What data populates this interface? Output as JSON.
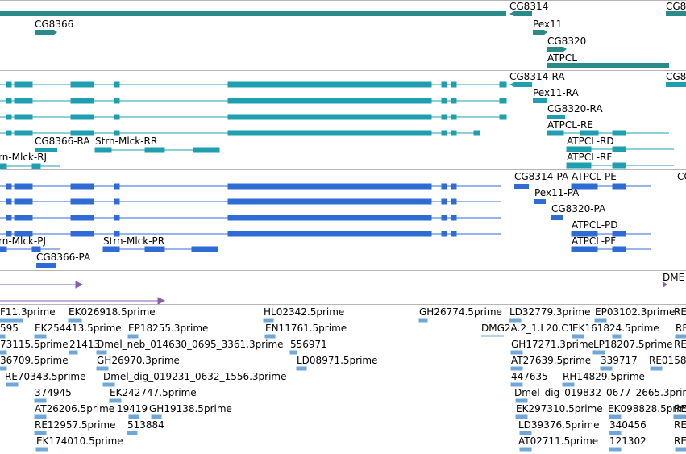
{
  "colors": {
    "gene": "#2a8a8a",
    "transcript": "#1e9fb0",
    "protein": "#2f6bd4",
    "insertion": "#8a5bb0",
    "est": "#6fa8d8",
    "divider": "#b5b5b5"
  },
  "tracks": {
    "genes": {
      "labels": [
        "CG8314",
        "CG8366",
        "Pex11",
        "CG8320",
        "ATPCL",
        "CG8"
      ]
    },
    "transcripts": {
      "labels": [
        "CG8314-RA",
        "Pex11-RA",
        "CG8320-RA",
        "ATPCL-RE",
        "CG8366-RA",
        "Strn-Mlck-RR",
        "ATPCL-RD",
        "rn-Mlck-RJ",
        "ATPCL-RF",
        "CG8"
      ]
    },
    "proteins": {
      "labels": [
        "CG8314-PA",
        "ATPCL-PE",
        "Pex11-PA",
        "CG8320-PA",
        "ATPCL-PD",
        "rn-Mlck-PJ",
        "Strn-Mlck-PR",
        "ATPCL-PF",
        "CG8366-PA",
        "CG"
      ]
    },
    "insertions": {
      "labels": [
        "DME"
      ]
    },
    "ests": {
      "labels": [
        "F11.3prime",
        "EK026918.5prime",
        "HL02342.5prime",
        "GH26774.5prime",
        "LD32779.3prime",
        "EP03102.3prime",
        "RE",
        "595",
        "EK254413.5prime",
        "EP18255.3prime",
        "EN11761.5prime",
        "DMG2A.2_1.L20.C1",
        "EK161824.5prime",
        "RE",
        "73115.5prime",
        "21413",
        "Dmel_neb_014630_0695_3361.3prime",
        "556971",
        "GH17271.3prime",
        "LP18207.5prime",
        "RE",
        "36709.5prime",
        "GH26970.3prime",
        "LD08971.5prime",
        "AT27639.5prime",
        "339717",
        "RE0158",
        "RE70343.5prime",
        "Dmel_dig_019231_0632_1556.3prime",
        "447635",
        "RH14829.5prime",
        "374945",
        "EK242747.5prime",
        "Dmel_dig_019832_0677_2665.3prime",
        "AT26206.5prime",
        "19419",
        "GH19138.5prime",
        "EK297310.5prime",
        "EK098828.5prime",
        "RE",
        "RE12957.5prime",
        "513884",
        "LD39376.5prime",
        "340456",
        "RE",
        "EK174010.5prime",
        "AT02711.5prime",
        "121302",
        "RE"
      ]
    }
  }
}
